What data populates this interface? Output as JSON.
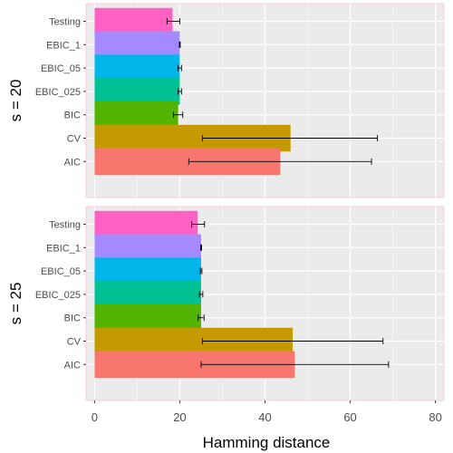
{
  "chart_data": {
    "type": "bar",
    "orientation": "horizontal",
    "xlabel": "Hamming distance",
    "xlim": [
      -2,
      82
    ],
    "x_ticks": [
      0,
      20,
      40,
      60,
      80
    ],
    "grid": true,
    "error_bars": true,
    "categories": [
      "Testing",
      "EBIC_1",
      "EBIC_05",
      "EBIC_025",
      "BIC",
      "CV",
      "AIC"
    ],
    "colors": {
      "Testing": "#FF61C3",
      "EBIC_1": "#A58AFF",
      "EBIC_05": "#00B6EB",
      "EBIC_025": "#00C094",
      "BIC": "#53B400",
      "CV": "#C49A00",
      "AIC": "#F8766D"
    },
    "panels": [
      {
        "label": "s = 20",
        "bars": [
          {
            "category": "Testing",
            "value": 18.3,
            "err_low": 17.0,
            "err_high": 20.0
          },
          {
            "category": "EBIC_1",
            "value": 20.0,
            "err_low": 19.9,
            "err_high": 20.1
          },
          {
            "category": "EBIC_05",
            "value": 20.0,
            "err_low": 19.6,
            "err_high": 20.4
          },
          {
            "category": "EBIC_025",
            "value": 20.0,
            "err_low": 19.6,
            "err_high": 20.4
          },
          {
            "category": "BIC",
            "value": 19.6,
            "err_low": 18.5,
            "err_high": 20.7
          },
          {
            "category": "CV",
            "value": 46.0,
            "err_low": 25.3,
            "err_high": 66.4
          },
          {
            "category": "AIC",
            "value": 43.6,
            "err_low": 22.1,
            "err_high": 65.0
          }
        ]
      },
      {
        "label": "s = 25",
        "bars": [
          {
            "category": "Testing",
            "value": 24.2,
            "err_low": 22.8,
            "err_high": 25.8
          },
          {
            "category": "EBIC_1",
            "value": 25.0,
            "err_low": 24.9,
            "err_high": 25.1
          },
          {
            "category": "EBIC_05",
            "value": 25.0,
            "err_low": 24.8,
            "err_high": 25.2
          },
          {
            "category": "EBIC_025",
            "value": 25.0,
            "err_low": 24.6,
            "err_high": 25.4
          },
          {
            "category": "BIC",
            "value": 25.0,
            "err_low": 24.3,
            "err_high": 25.7
          },
          {
            "category": "CV",
            "value": 46.5,
            "err_low": 25.3,
            "err_high": 67.7
          },
          {
            "category": "AIC",
            "value": 47.0,
            "err_low": 25.0,
            "err_high": 69.0
          }
        ]
      }
    ]
  }
}
